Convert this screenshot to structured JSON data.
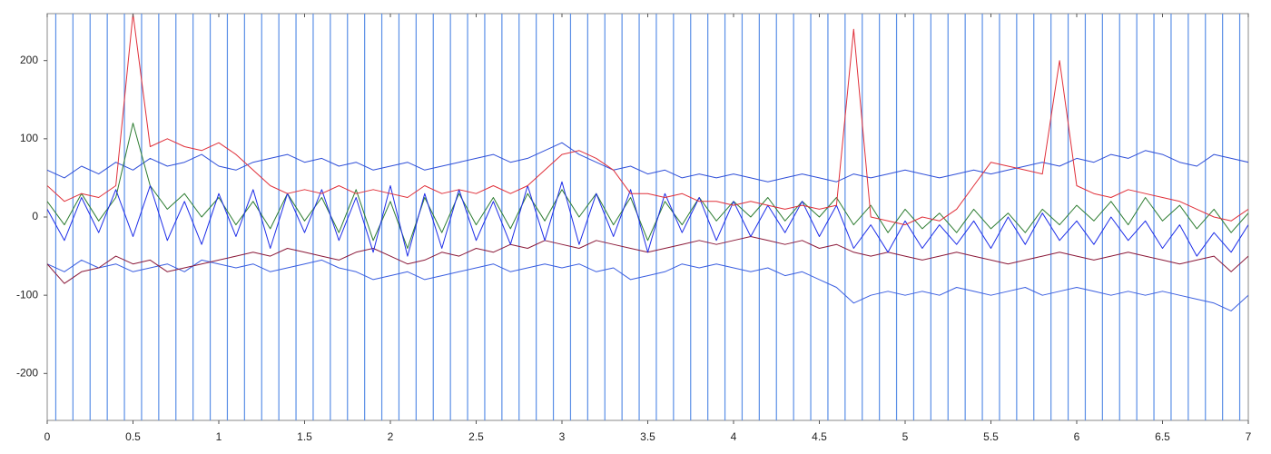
{
  "chart_data": {
    "type": "line",
    "x": [
      0,
      0.1,
      0.2,
      0.3,
      0.4,
      0.5,
      0.6,
      0.7,
      0.8,
      0.9,
      1,
      1.1,
      1.2,
      1.3,
      1.4,
      1.5,
      1.6,
      1.7,
      1.8,
      1.9,
      2,
      2.1,
      2.2,
      2.3,
      2.4,
      2.5,
      2.6,
      2.7,
      2.8,
      2.9,
      3,
      3.1,
      3.2,
      3.3,
      3.4,
      3.5,
      3.6,
      3.7,
      3.8,
      3.9,
      4,
      4.1,
      4.2,
      4.3,
      4.4,
      4.5,
      4.6,
      4.7,
      4.8,
      4.9,
      5,
      5.1,
      5.2,
      5.3,
      5.4,
      5.5,
      5.6,
      5.7,
      5.8,
      5.9,
      6,
      6.1,
      6.2,
      6.3,
      6.4,
      6.5,
      6.6,
      6.7,
      6.8,
      6.9,
      7
    ],
    "markers": [
      0.05,
      0.15,
      0.25,
      0.35,
      0.45,
      0.55,
      0.65,
      0.75,
      0.85,
      0.95,
      1.05,
      1.15,
      1.25,
      1.35,
      1.45,
      1.55,
      1.65,
      1.75,
      1.85,
      1.95,
      2.05,
      2.15,
      2.25,
      2.35,
      2.45,
      2.55,
      2.65,
      2.75,
      2.85,
      2.95,
      3.05,
      3.15,
      3.25,
      3.35,
      3.45,
      3.55,
      3.65,
      3.75,
      3.85,
      3.95,
      4.05,
      4.15,
      4.25,
      4.35,
      4.45,
      4.55,
      4.65,
      4.75,
      4.85,
      4.95,
      5.05,
      5.15,
      5.25,
      5.35,
      5.45,
      5.55,
      5.65,
      5.75,
      5.85,
      5.95,
      6.05,
      6.15,
      6.25,
      6.35,
      6.45,
      6.55,
      6.65,
      6.75,
      6.85,
      6.95
    ],
    "marker_color": "#5b8fe6",
    "series": [
      {
        "color": "#2f4fd8",
        "values": [
          60,
          50,
          65,
          55,
          70,
          60,
          75,
          65,
          70,
          80,
          65,
          60,
          70,
          75,
          80,
          70,
          75,
          65,
          70,
          60,
          65,
          70,
          60,
          65,
          70,
          75,
          80,
          70,
          75,
          85,
          95,
          80,
          70,
          60,
          65,
          55,
          60,
          50,
          55,
          50,
          55,
          50,
          45,
          50,
          55,
          50,
          45,
          55,
          50,
          55,
          60,
          55,
          50,
          55,
          60,
          55,
          60,
          65,
          70,
          65,
          75,
          70,
          80,
          75,
          85,
          80,
          70,
          65,
          80,
          75,
          70
        ]
      },
      {
        "color": "#3a5ee0",
        "values": [
          -60,
          -70,
          -55,
          -65,
          -60,
          -70,
          -65,
          -60,
          -70,
          -55,
          -60,
          -65,
          -60,
          -70,
          -65,
          -60,
          -55,
          -65,
          -70,
          -80,
          -75,
          -70,
          -80,
          -75,
          -70,
          -65,
          -60,
          -70,
          -65,
          -60,
          -65,
          -60,
          -70,
          -65,
          -80,
          -75,
          -70,
          -60,
          -65,
          -60,
          -65,
          -70,
          -65,
          -75,
          -70,
          -80,
          -90,
          -110,
          -100,
          -95,
          -100,
          -95,
          -100,
          -90,
          -95,
          -100,
          -95,
          -90,
          -100,
          -95,
          -90,
          -95,
          -100,
          -95,
          -100,
          -95,
          -100,
          -105,
          -110,
          -120,
          -100
        ]
      },
      {
        "color": "#8b1a3a",
        "values": [
          -60,
          -85,
          -70,
          -65,
          -50,
          -60,
          -55,
          -70,
          -65,
          -60,
          -55,
          -50,
          -45,
          -50,
          -40,
          -45,
          -50,
          -55,
          -45,
          -40,
          -50,
          -60,
          -55,
          -45,
          -50,
          -40,
          -45,
          -35,
          -40,
          -30,
          -35,
          -40,
          -30,
          -35,
          -40,
          -45,
          -40,
          -35,
          -30,
          -35,
          -30,
          -25,
          -30,
          -35,
          -30,
          -40,
          -35,
          -45,
          -50,
          -45,
          -50,
          -55,
          -50,
          -45,
          -50,
          -55,
          -60,
          -55,
          -50,
          -45,
          -50,
          -55,
          -50,
          -45,
          -50,
          -55,
          -60,
          -55,
          -50,
          -70,
          -50
        ]
      },
      {
        "color": "#2e7d32",
        "values": [
          20,
          -10,
          30,
          -5,
          25,
          120,
          40,
          10,
          30,
          0,
          25,
          -10,
          20,
          -15,
          30,
          -5,
          25,
          -20,
          35,
          -30,
          20,
          -40,
          25,
          -20,
          30,
          -10,
          25,
          -15,
          30,
          -5,
          35,
          0,
          30,
          -10,
          25,
          -30,
          20,
          -10,
          25,
          -5,
          20,
          0,
          25,
          -5,
          20,
          0,
          25,
          -10,
          15,
          -20,
          10,
          -15,
          5,
          -20,
          10,
          -15,
          5,
          -20,
          10,
          -10,
          15,
          -5,
          20,
          -10,
          25,
          -5,
          15,
          -15,
          10,
          -20,
          5
        ]
      },
      {
        "color": "#1e2ee8",
        "values": [
          10,
          -30,
          25,
          -20,
          35,
          -25,
          40,
          -30,
          20,
          -35,
          30,
          -25,
          35,
          -40,
          30,
          -20,
          35,
          -30,
          25,
          -45,
          40,
          -50,
          30,
          -40,
          35,
          -30,
          20,
          -35,
          40,
          -30,
          45,
          -35,
          30,
          -25,
          35,
          -45,
          30,
          -20,
          25,
          -30,
          20,
          -25,
          15,
          -20,
          20,
          -25,
          15,
          -40,
          -10,
          -45,
          -5,
          -40,
          -10,
          -35,
          -5,
          -40,
          0,
          -35,
          5,
          -30,
          -5,
          -35,
          0,
          -30,
          -5,
          -40,
          -10,
          -50,
          -20,
          -45,
          -10
        ]
      },
      {
        "color": "#e0303a",
        "values": [
          40,
          20,
          30,
          25,
          40,
          260,
          90,
          100,
          90,
          85,
          95,
          80,
          60,
          40,
          30,
          35,
          30,
          40,
          30,
          35,
          30,
          25,
          40,
          30,
          35,
          30,
          40,
          30,
          40,
          60,
          80,
          85,
          75,
          60,
          30,
          30,
          25,
          30,
          20,
          20,
          15,
          20,
          15,
          10,
          15,
          10,
          15,
          240,
          0,
          -5,
          -10,
          0,
          -5,
          10,
          40,
          70,
          65,
          60,
          55,
          200,
          40,
          30,
          25,
          35,
          30,
          25,
          20,
          10,
          0,
          -5,
          10
        ]
      }
    ],
    "xlim": [
      0,
      7
    ],
    "xticks": [
      0,
      0.5,
      1,
      1.5,
      2,
      2.5,
      3,
      3.5,
      4,
      4.5,
      5,
      5.5,
      6,
      6.5,
      7
    ],
    "ylim": [
      -260,
      260
    ],
    "yticks": [
      -200,
      -100,
      0,
      100,
      200
    ],
    "grid": false
  }
}
